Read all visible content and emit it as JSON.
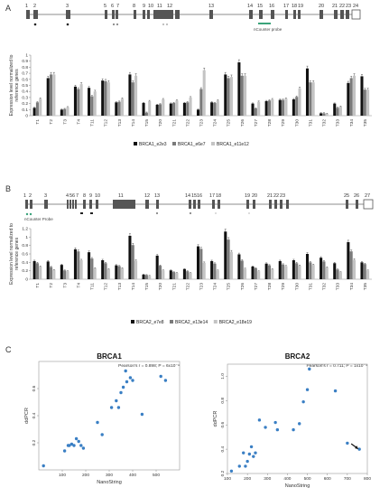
{
  "figure": {
    "panels": [
      {
        "letter": "A",
        "exons": [
          "1",
          "2",
          "3",
          "5",
          "6",
          "7",
          "8",
          "9",
          "10",
          "11",
          "12",
          "13",
          "14",
          "15",
          "16",
          "17",
          "18",
          "19",
          "20",
          "21",
          "22",
          "23",
          "24"
        ],
        "probe_label": "nCounter probe"
      },
      {
        "letter": "B",
        "exons": [
          "1",
          "2",
          "3",
          "4",
          "5",
          "6",
          "7",
          "8",
          "9",
          "10",
          "11",
          "12",
          "13",
          "14",
          "15",
          "16",
          "17",
          "18",
          "19",
          "20",
          "21",
          "22",
          "23",
          "25",
          "26",
          "27"
        ],
        "probe_label": "nCounter Probe"
      },
      {
        "letter": "C"
      }
    ]
  },
  "chart_data": [
    {
      "type": "bar",
      "ylabel": "Expression level normalized to\nreference genes",
      "ylim": [
        0,
        1
      ],
      "yticks": [
        "0",
        "0.1",
        "0.2",
        "0.3",
        "0.4",
        "0.5",
        "0.6",
        "0.7",
        "0.8",
        "0.9",
        "1"
      ],
      "categories": [
        "T1",
        "T2",
        "T3",
        "T4",
        "T11",
        "T12",
        "T13",
        "T14",
        "T15",
        "T20",
        "T21",
        "T22",
        "T23",
        "T24",
        "T25",
        "T26",
        "T27",
        "T28",
        "T29",
        "T30",
        "T31",
        "T32",
        "T33",
        "T34",
        "T35"
      ],
      "series": [
        {
          "name": "BRCA1_e2e3",
          "color": "#111111",
          "values": [
            0.13,
            0.62,
            0.1,
            0.48,
            0.46,
            0.58,
            0.22,
            0.68,
            0.21,
            0.18,
            0.2,
            0.21,
            0.1,
            0.22,
            0.68,
            0.88,
            0.2,
            0.24,
            0.26,
            0.27,
            0.78,
            0.04,
            0.2,
            0.54,
            0.65
          ]
        },
        {
          "name": "BRCA1_e6e7",
          "color": "#7a7a7a",
          "values": [
            0.22,
            0.68,
            0.11,
            0.44,
            0.32,
            0.57,
            0.23,
            0.55,
            0.05,
            0.19,
            0.21,
            0.22,
            0.44,
            0.21,
            0.62,
            0.66,
            0.12,
            0.25,
            0.26,
            0.31,
            0.55,
            0.04,
            0.13,
            0.62,
            0.43
          ]
        },
        {
          "name": "BRCA1_e11e12",
          "color": "#c4c4c4",
          "values": [
            0.28,
            0.68,
            0.14,
            0.52,
            0.4,
            0.55,
            0.28,
            0.66,
            0.24,
            0.27,
            0.25,
            0.3,
            0.75,
            0.25,
            0.64,
            0.66,
            0.23,
            0.27,
            0.28,
            0.45,
            0.55,
            0.03,
            0.15,
            0.66,
            0.43
          ]
        }
      ]
    },
    {
      "type": "bar",
      "ylabel": "Expression level normalized to\nreference genes",
      "ylim": [
        0,
        1.2
      ],
      "yticks": [
        "0",
        "0.2",
        "0.4",
        "0.6",
        "0.8",
        "1",
        "1.2"
      ],
      "categories": [
        "T1",
        "T2",
        "T3",
        "T4",
        "T11",
        "T12",
        "T13",
        "T14",
        "T15",
        "T20",
        "T21",
        "T22",
        "T23",
        "T24",
        "T25",
        "T26",
        "T27",
        "T28",
        "T29",
        "T30",
        "T31",
        "T32",
        "T33",
        "T34",
        "T35"
      ],
      "series": [
        {
          "name": "BRCA2_e7e8",
          "color": "#111111",
          "values": [
            0.43,
            0.42,
            0.34,
            0.71,
            0.64,
            0.45,
            0.33,
            1.03,
            0.11,
            0.56,
            0.21,
            0.24,
            0.78,
            0.43,
            1.13,
            0.59,
            0.3,
            0.37,
            0.43,
            0.45,
            0.6,
            0.51,
            0.38,
            0.88,
            0.4
          ]
        },
        {
          "name": "BRCA2_e13e14",
          "color": "#7a7a7a",
          "values": [
            0.38,
            0.29,
            0.21,
            0.66,
            0.49,
            0.38,
            0.31,
            0.81,
            0.1,
            0.32,
            0.17,
            0.19,
            0.72,
            0.37,
            0.94,
            0.44,
            0.26,
            0.33,
            0.35,
            0.38,
            0.4,
            0.42,
            0.23,
            0.66,
            0.36
          ]
        },
        {
          "name": "BRCA2_e18e19",
          "color": "#c4c4c4",
          "values": [
            0.3,
            0.22,
            0.19,
            0.45,
            0.26,
            0.24,
            0.26,
            0.44,
            0.08,
            0.21,
            0.15,
            0.15,
            0.39,
            0.21,
            0.65,
            0.25,
            0.19,
            0.24,
            0.31,
            0.32,
            0.34,
            0.28,
            0.17,
            0.46,
            0.21
          ]
        }
      ]
    },
    {
      "type": "scatter",
      "title": "BRCA1",
      "subtitle": "Pearson's r = 0.898; P = 6x10⁻⁹",
      "xlabel": "NanoString",
      "ylabel": "ddPCR",
      "xlim": [
        0,
        600
      ],
      "ylim": [
        0,
        0.8
      ],
      "xticks": [
        100,
        200,
        300,
        400,
        500
      ],
      "yticks": [
        0.2,
        0.4,
        0.6
      ],
      "color": "#3a7fc4",
      "points": [
        [
          20,
          0.03
        ],
        [
          110,
          0.14
        ],
        [
          125,
          0.18
        ],
        [
          130,
          0.18
        ],
        [
          140,
          0.19
        ],
        [
          150,
          0.18
        ],
        [
          160,
          0.23
        ],
        [
          170,
          0.21
        ],
        [
          180,
          0.18
        ],
        [
          190,
          0.16
        ],
        [
          250,
          0.35
        ],
        [
          270,
          0.26
        ],
        [
          310,
          0.46
        ],
        [
          330,
          0.51
        ],
        [
          340,
          0.46
        ],
        [
          350,
          0.57
        ],
        [
          360,
          0.61
        ],
        [
          370,
          0.73
        ],
        [
          375,
          0.65
        ],
        [
          390,
          0.68
        ],
        [
          400,
          0.66
        ],
        [
          440,
          0.41
        ],
        [
          520,
          0.69
        ],
        [
          540,
          0.66
        ]
      ]
    },
    {
      "type": "scatter",
      "title": "BRCA2",
      "subtitle": "Pearson's r = 0.711; P = 1x10⁻⁴",
      "xlabel": "NanoString",
      "ylabel": "ddPCR",
      "xlim": [
        100,
        800
      ],
      "ylim": [
        0.2,
        1.1
      ],
      "xticks": [
        100,
        200,
        300,
        400,
        500,
        600,
        700,
        800
      ],
      "yticks": [
        0.2,
        0.4,
        0.6,
        0.8,
        1.0
      ],
      "color": "#3a7fc4",
      "points": [
        [
          120,
          0.22
        ],
        [
          160,
          0.26
        ],
        [
          180,
          0.37
        ],
        [
          190,
          0.26
        ],
        [
          200,
          0.3
        ],
        [
          210,
          0.36
        ],
        [
          220,
          0.42
        ],
        [
          230,
          0.34
        ],
        [
          240,
          0.37
        ],
        [
          260,
          0.64
        ],
        [
          290,
          0.58
        ],
        [
          340,
          0.62
        ],
        [
          350,
          0.56
        ],
        [
          430,
          0.56
        ],
        [
          460,
          0.61
        ],
        [
          480,
          0.79
        ],
        [
          500,
          0.89
        ],
        [
          510,
          1.06
        ],
        [
          640,
          0.88
        ],
        [
          700,
          0.45
        ],
        [
          760,
          0.4
        ]
      ]
    }
  ]
}
